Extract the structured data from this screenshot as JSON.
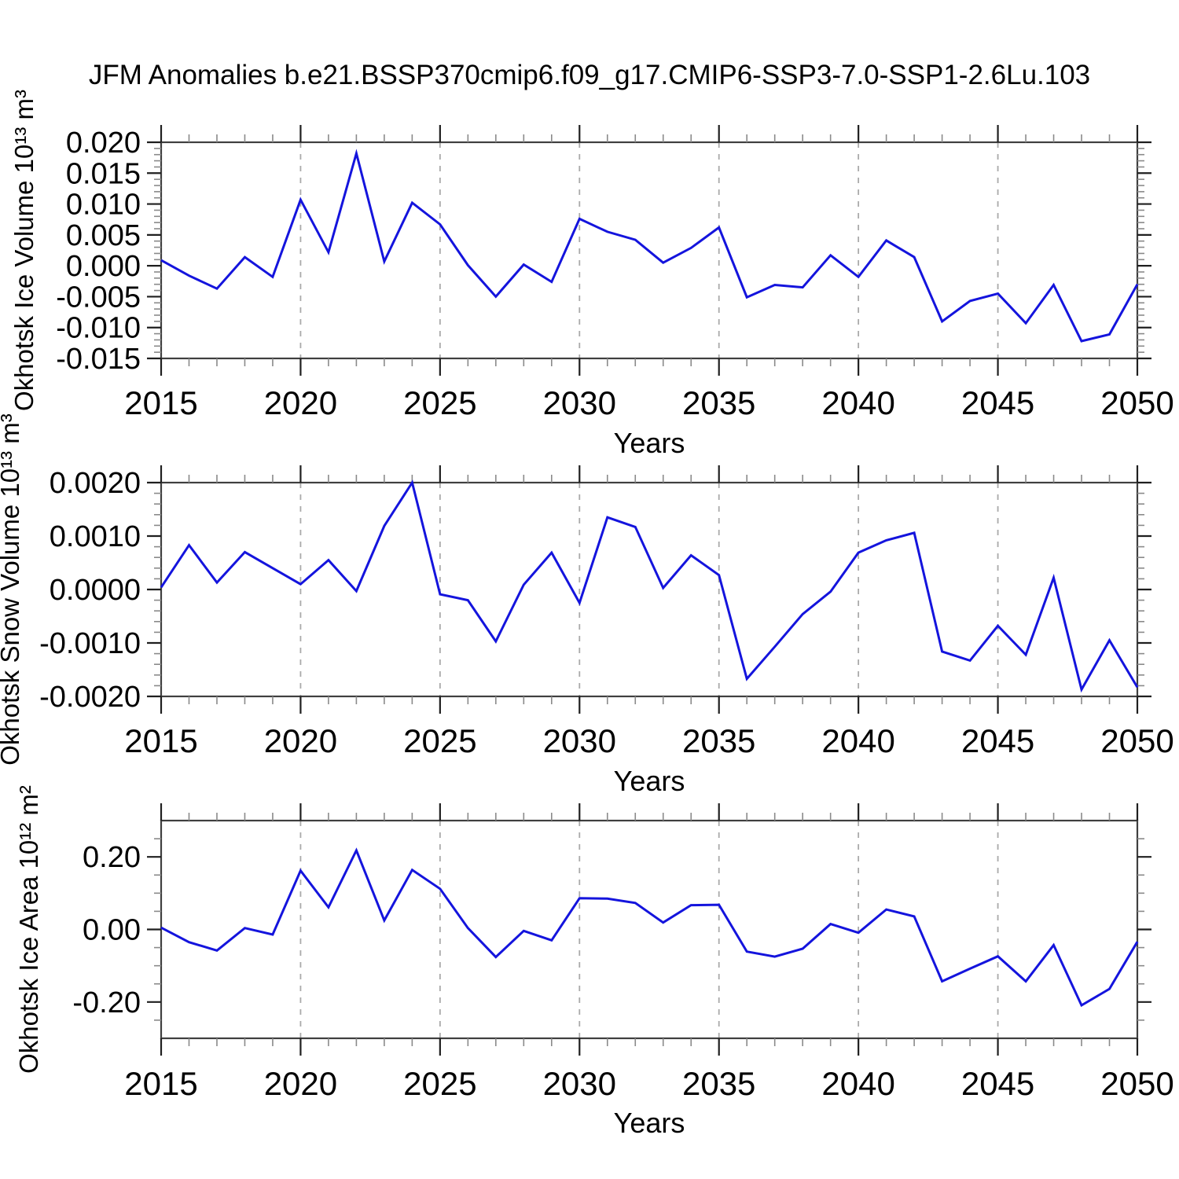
{
  "title": "JFM Anomalies b.e21.BSSP370cmip6.f09_g17.CMIP6-SSP3-7.0-SSP1-2.6Lu.103",
  "colors": {
    "line": "#1414dd",
    "axis": "#3f3f3f",
    "major_tick": "#1f1f1f",
    "minor_tick": "#8a8a8a",
    "grid": "#aaaaaa",
    "text": "#000000"
  },
  "chart_data": [
    {
      "type": "line",
      "title": "",
      "ylabel": "Okhotsk Ice Volume 10¹³ m³",
      "xlabel": "Years",
      "x": [
        2015,
        2016,
        2017,
        2018,
        2019,
        2020,
        2021,
        2022,
        2023,
        2024,
        2025,
        2026,
        2027,
        2028,
        2029,
        2030,
        2031,
        2032,
        2033,
        2034,
        2035,
        2036,
        2037,
        2038,
        2039,
        2040,
        2041,
        2042,
        2043,
        2044,
        2045,
        2046,
        2047,
        2048,
        2049,
        2050
      ],
      "values": [
        0.0009,
        -0.0016,
        -0.0037,
        0.0014,
        -0.0018,
        0.0107,
        0.0022,
        0.0182,
        0.0007,
        0.0102,
        0.0067,
        0.0001,
        -0.005,
        0.0002,
        -0.0026,
        0.0076,
        0.0055,
        0.0042,
        0.0005,
        0.0029,
        0.0062,
        -0.0051,
        -0.0031,
        -0.0035,
        0.0017,
        -0.0018,
        0.0041,
        0.0014,
        -0.009,
        -0.0057,
        -0.0045,
        -0.0093,
        -0.0031,
        -0.0122,
        -0.0111,
        -0.003
      ],
      "ylim": [
        -0.015,
        0.02
      ],
      "ytick_major_values": [
        0.02,
        0.015,
        0.01,
        0.005,
        0.0,
        -0.005,
        -0.01,
        -0.015
      ],
      "ytick_major_labels": [
        "0.020",
        "0.015",
        "0.010",
        "0.005",
        "0.000",
        "-0.005",
        "-0.010",
        "-0.015"
      ],
      "ytick_minor_step": 0.001,
      "xlim": [
        2015,
        2050
      ],
      "xtick_major": [
        2015,
        2020,
        2025,
        2030,
        2035,
        2040,
        2045,
        2050
      ],
      "xtick_minor_step": 1,
      "grid_x": [
        2020,
        2025,
        2030,
        2035,
        2040,
        2045
      ],
      "grid_style": "vertical-dashed",
      "legend": "none"
    },
    {
      "type": "line",
      "title": "",
      "ylabel": "Okhotsk Snow Volume 10¹³ m³",
      "xlabel": "Years",
      "x": [
        2015,
        2016,
        2017,
        2018,
        2019,
        2020,
        2021,
        2022,
        2023,
        2024,
        2025,
        2026,
        2027,
        2028,
        2029,
        2030,
        2031,
        2032,
        2033,
        2034,
        2035,
        2036,
        2037,
        2038,
        2039,
        2040,
        2041,
        2042,
        2043,
        2044,
        2045,
        2046,
        2047,
        2048,
        2049,
        2050
      ],
      "values": [
        4e-05,
        0.00083,
        0.00013,
        0.0007,
        0.0004,
        0.0001,
        0.00055,
        -3e-05,
        0.00119,
        0.002,
        -9e-05,
        -0.0002,
        -0.00097,
        9e-05,
        0.00069,
        -0.00025,
        0.00135,
        0.00117,
        3e-05,
        0.00064,
        0.00027,
        -0.00167,
        -0.00107,
        -0.00046,
        -4e-05,
        0.00069,
        0.00092,
        0.00106,
        -0.00116,
        -0.00133,
        -0.00068,
        -0.00122,
        0.00022,
        -0.00187,
        -0.00095,
        -0.00183
      ],
      "ylim": [
        -0.002,
        0.002
      ],
      "ytick_major_values": [
        0.002,
        0.001,
        0.0,
        -0.001,
        -0.002
      ],
      "ytick_major_labels": [
        "0.0020",
        "0.0010",
        "0.0000",
        "-0.0010",
        "-0.0020"
      ],
      "ytick_minor_step": 0.0002,
      "xlim": [
        2015,
        2050
      ],
      "xtick_major": [
        2015,
        2020,
        2025,
        2030,
        2035,
        2040,
        2045,
        2050
      ],
      "xtick_minor_step": 1,
      "grid_x": [
        2020,
        2025,
        2030,
        2035,
        2040,
        2045
      ],
      "grid_style": "vertical-dashed",
      "legend": "none"
    },
    {
      "type": "line",
      "title": "",
      "ylabel": "Okhotsk Ice Area 10¹² m²",
      "xlabel": "Years",
      "x": [
        2015,
        2016,
        2017,
        2018,
        2019,
        2020,
        2021,
        2022,
        2023,
        2024,
        2025,
        2026,
        2027,
        2028,
        2029,
        2030,
        2031,
        2032,
        2033,
        2034,
        2035,
        2036,
        2037,
        2038,
        2039,
        2040,
        2041,
        2042,
        2043,
        2044,
        2045,
        2046,
        2047,
        2048,
        2049,
        2050
      ],
      "values": [
        0.005,
        -0.035,
        -0.058,
        0.004,
        -0.014,
        0.162,
        0.061,
        0.218,
        0.025,
        0.164,
        0.112,
        0.004,
        -0.076,
        -0.004,
        -0.03,
        0.086,
        0.085,
        0.073,
        0.019,
        0.067,
        0.068,
        -0.061,
        -0.075,
        -0.053,
        0.015,
        -0.009,
        0.055,
        0.036,
        -0.143,
        -0.108,
        -0.074,
        -0.143,
        -0.043,
        -0.209,
        -0.164,
        -0.034
      ],
      "ylim": [
        -0.3,
        0.3
      ],
      "ytick_major_values": [
        0.2,
        0.0,
        -0.2
      ],
      "ytick_major_labels": [
        "0.20",
        "0.00",
        "-0.20"
      ],
      "ytick_minor_step": 0.05,
      "xlim": [
        2015,
        2050
      ],
      "xtick_major": [
        2015,
        2020,
        2025,
        2030,
        2035,
        2040,
        2045,
        2050
      ],
      "xtick_minor_step": 1,
      "grid_x": [
        2020,
        2025,
        2030,
        2035,
        2040,
        2045
      ],
      "grid_style": "vertical-dashed",
      "legend": "none"
    }
  ]
}
